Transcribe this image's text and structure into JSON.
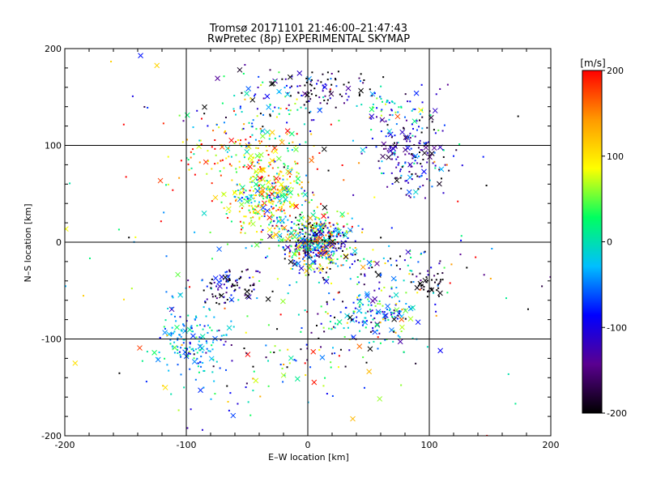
{
  "chart_data": {
    "type": "scatter",
    "title_line1": "Tromsø 20171101 21:46:00–21:47:43",
    "title_line2": "RwPretec (8p) EXPERIMENTAL SKYMAP",
    "xlabel": "E–W location [km]",
    "ylabel": "N–S location [km]",
    "xlim": [
      -200,
      200
    ],
    "ylim": [
      -200,
      200
    ],
    "xticks": [
      -200,
      -100,
      0,
      100,
      200
    ],
    "yticks": [
      -200,
      -100,
      0,
      100,
      200
    ],
    "gridlines_x": [
      -100,
      0,
      100
    ],
    "gridlines_y": [
      -100,
      0,
      100
    ],
    "colorbar": {
      "label": "[m/s]",
      "range": [
        -200,
        200
      ],
      "ticks": [
        200,
        100,
        0,
        -100,
        -200
      ],
      "colormap": [
        "#000000",
        "#5a0090",
        "#0000ff",
        "#00bfff",
        "#00ff60",
        "#ffff00",
        "#ff9900",
        "#ff0000"
      ]
    },
    "clusters": [
      {
        "cx": 5,
        "cy": 0,
        "sx": 14,
        "sy": 14,
        "n": 520,
        "vmean": -30,
        "vspread": 120
      },
      {
        "cx": -35,
        "cy": 45,
        "sx": 16,
        "sy": 20,
        "n": 360,
        "vmean": 70,
        "vspread": 70
      },
      {
        "cx": -50,
        "cy": 90,
        "sx": 30,
        "sy": 15,
        "n": 120,
        "vmean": 130,
        "vspread": 80
      },
      {
        "cx": 85,
        "cy": 90,
        "sx": 15,
        "sy": 25,
        "n": 190,
        "vmean": -130,
        "vspread": 60
      },
      {
        "cx": 0,
        "cy": 160,
        "sx": 25,
        "sy": 12,
        "n": 110,
        "vmean": -160,
        "vspread": 70
      },
      {
        "cx": -40,
        "cy": 130,
        "sx": 25,
        "sy": 20,
        "n": 80,
        "vmean": 20,
        "vspread": 100
      },
      {
        "cx": 70,
        "cy": 140,
        "sx": 15,
        "sy": 10,
        "n": 50,
        "vmean": -20,
        "vspread": 60
      },
      {
        "cx": -65,
        "cy": -45,
        "sx": 14,
        "sy": 10,
        "n": 90,
        "vmean": -160,
        "vspread": 80
      },
      {
        "cx": -95,
        "cy": -100,
        "sx": 15,
        "sy": 20,
        "n": 150,
        "vmean": -30,
        "vspread": 40
      },
      {
        "cx": 55,
        "cy": -75,
        "sx": 18,
        "sy": 12,
        "n": 150,
        "vmean": -40,
        "vspread": 80
      },
      {
        "cx": 100,
        "cy": -45,
        "sx": 6,
        "sy": 5,
        "n": 35,
        "vmean": -200,
        "vspread": 15
      },
      {
        "cx": 60,
        "cy": -25,
        "sx": 35,
        "sy": 12,
        "n": 80,
        "vmean": -90,
        "vspread": 100
      },
      {
        "cx": 20,
        "cy": -110,
        "sx": 30,
        "sy": 30,
        "n": 70,
        "vmean": -10,
        "vspread": 120
      },
      {
        "cx": -60,
        "cy": -130,
        "sx": 30,
        "sy": 25,
        "n": 60,
        "vmean": -40,
        "vspread": 100
      },
      {
        "cx": 0,
        "cy": 0,
        "sx": 110,
        "sy": 110,
        "n": 180,
        "vmean": 0,
        "vspread": 140
      }
    ]
  }
}
